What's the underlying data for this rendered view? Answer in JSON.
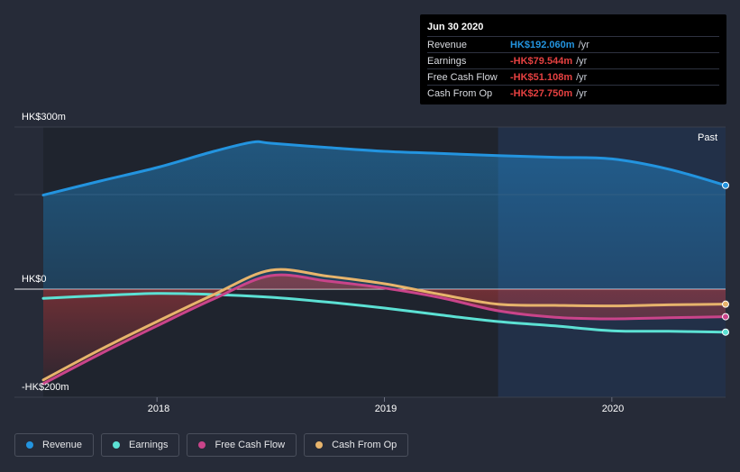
{
  "tooltip": {
    "date": "Jun 30 2020",
    "rows": [
      {
        "label": "Revenue",
        "value": "HK$192.060m",
        "unit": "/yr",
        "color": "#2394df"
      },
      {
        "label": "Earnings",
        "value": "-HK$79.544m",
        "unit": "/yr",
        "color": "#e64141"
      },
      {
        "label": "Free Cash Flow",
        "value": "-HK$51.108m",
        "unit": "/yr",
        "color": "#e64141"
      },
      {
        "label": "Cash From Op",
        "value": "-HK$27.750m",
        "unit": "/yr",
        "color": "#e64141"
      }
    ]
  },
  "period_label": "Past",
  "legend": [
    {
      "label": "Revenue",
      "color": "#2394df"
    },
    {
      "label": "Earnings",
      "color": "#5ce1d4"
    },
    {
      "label": "Free Cash Flow",
      "color": "#c9448a"
    },
    {
      "label": "Cash From Op",
      "color": "#e7b46c"
    }
  ],
  "chart_data": {
    "type": "line",
    "title": "",
    "y_tick_labels": [
      "HK$300m",
      "HK$0",
      "-HK$200m"
    ],
    "x_tick_labels": [
      "2018",
      "2019",
      "2020"
    ],
    "ylim": [
      -200,
      300
    ],
    "x_ticks": [
      2018.0,
      2019.0,
      2020.0
    ],
    "xlim": [
      2017.5,
      2020.5
    ],
    "grid": true,
    "forecast_shading_start": 2019.5,
    "series": [
      {
        "name": "Revenue",
        "color": "#2394df",
        "x": [
          2017.5,
          2017.75,
          2018.0,
          2018.25,
          2018.42,
          2018.5,
          2018.75,
          2019.0,
          2019.25,
          2019.5,
          2019.75,
          2020.0,
          2020.25,
          2020.5
        ],
        "y": [
          174,
          200,
          225,
          255,
          272,
          270,
          262,
          255,
          251,
          247,
          244,
          241,
          222,
          192
        ]
      },
      {
        "name": "Earnings",
        "color": "#5ce1d4",
        "x": [
          2017.5,
          2017.75,
          2018.0,
          2018.25,
          2018.5,
          2018.75,
          2019.0,
          2019.25,
          2019.5,
          2019.75,
          2020.0,
          2020.25,
          2020.5
        ],
        "y": [
          -17,
          -12,
          -8,
          -10,
          -15,
          -24,
          -35,
          -48,
          -60,
          -68,
          -77,
          -78,
          -79.5
        ]
      },
      {
        "name": "Free Cash Flow",
        "color": "#c9448a",
        "x": [
          2017.5,
          2017.75,
          2018.0,
          2018.25,
          2018.5,
          2018.75,
          2019.0,
          2019.25,
          2019.5,
          2019.75,
          2020.0,
          2020.25,
          2020.5
        ],
        "y": [
          -175,
          -120,
          -68,
          -18,
          25,
          15,
          2,
          -16,
          -40,
          -52,
          -55,
          -53,
          -51
        ]
      },
      {
        "name": "Cash From Op",
        "color": "#e7b46c",
        "x": [
          2017.5,
          2017.75,
          2018.0,
          2018.25,
          2018.5,
          2018.75,
          2019.0,
          2019.25,
          2019.5,
          2019.75,
          2020.0,
          2020.25,
          2020.5
        ],
        "y": [
          -168,
          -112,
          -60,
          -10,
          35,
          24,
          10,
          -10,
          -28,
          -30,
          -31,
          -29,
          -27.75
        ]
      }
    ]
  }
}
